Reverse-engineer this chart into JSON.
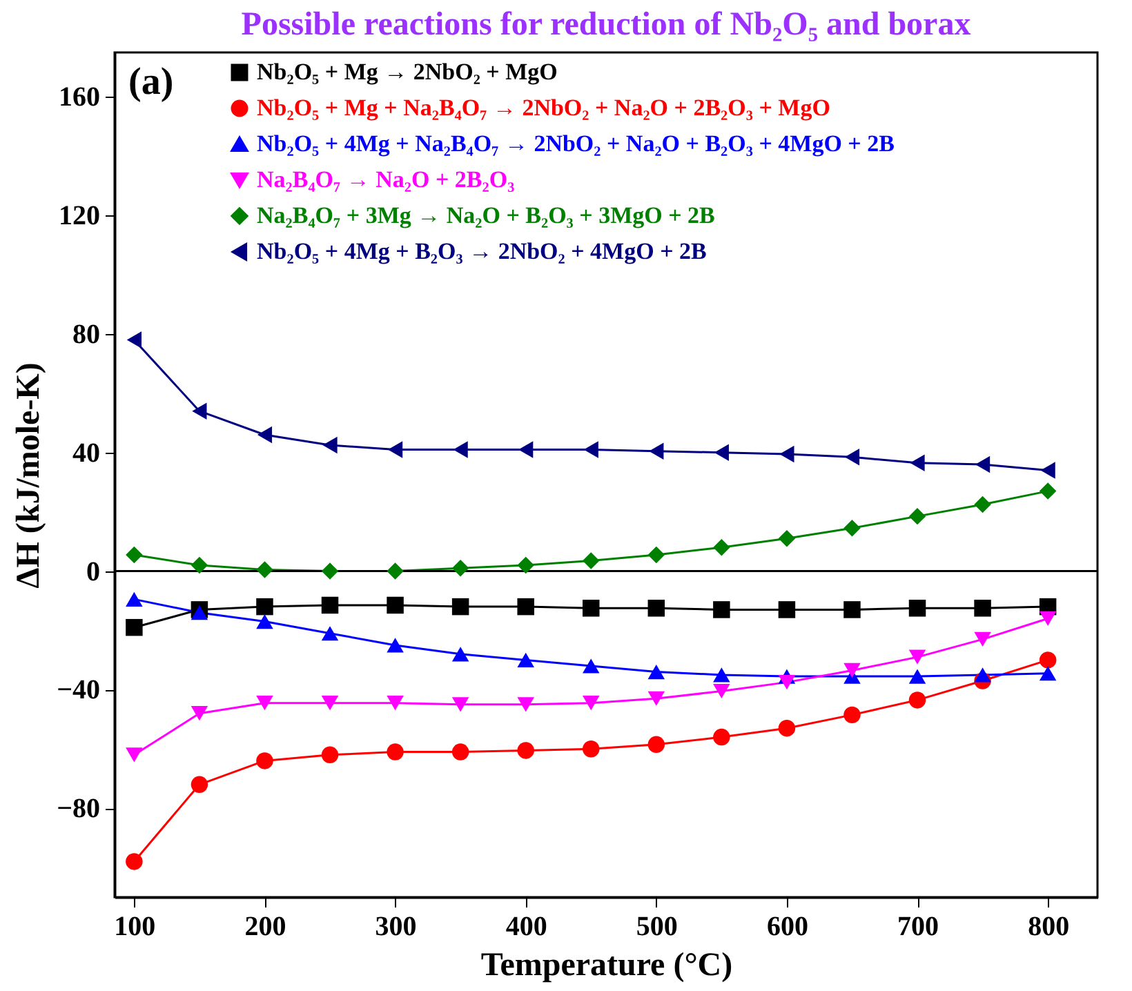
{
  "chart_data": {
    "type": "line",
    "title": "Possible reactions for reduction of Nb₂O₅ and borax",
    "xlabel": "Temperature (°C)",
    "ylabel": "ΔH (kJ/mole-K)",
    "x": [
      100,
      150,
      200,
      250,
      300,
      350,
      400,
      450,
      500,
      550,
      600,
      650,
      700,
      750,
      800
    ],
    "series": [
      {
        "name": "Nb₂O₅ + Mg → 2NbO₂ + MgO",
        "color": "#000000",
        "marker": "square",
        "values": [
          -19,
          -13,
          -12,
          -11.5,
          -11.5,
          -12,
          -12,
          -12.5,
          -12.5,
          -13,
          -13,
          -13,
          -12.5,
          -12.5,
          -12
        ]
      },
      {
        "name": "Nb₂O₅ + Mg + Na₂B₄O₇ → 2NbO₂ + Na₂O + 2B₂O₃ + MgO",
        "color": "#ff0000",
        "marker": "circle",
        "values": [
          -98,
          -72,
          -64,
          -62,
          -61,
          -61,
          -60.5,
          -60,
          -58.5,
          -56,
          -53,
          -48.5,
          -43.5,
          -37,
          -30
        ]
      },
      {
        "name": "Nb₂O₅ + 4Mg + Na₂B₄O₇ → 2NbO₂ + Na₂O + B₂O₃ + 4MgO + 2B",
        "color": "#0000ff",
        "marker": "triangle-up",
        "values": [
          -9.5,
          -14,
          -17,
          -21,
          -25,
          -28,
          -30,
          -32,
          -34,
          -35,
          -35.5,
          -35.5,
          -35.5,
          -35,
          -34.5
        ]
      },
      {
        "name": "Na₂B₄O₇ → Na₂O + 2B₂O₃",
        "color": "#ff00ff",
        "marker": "triangle-down",
        "values": [
          -62,
          -48,
          -44.5,
          -44.5,
          -44.5,
          -45,
          -45,
          -44.5,
          -43,
          -40.5,
          -37.5,
          -33.5,
          -29,
          -23,
          -16
        ]
      },
      {
        "name": "Na₂B₄O₇ + 3Mg → Na₂O + B₂O₃ + 3MgO + 2B",
        "color": "#008000",
        "marker": "diamond",
        "values": [
          5.5,
          2,
          0.5,
          0,
          0,
          1,
          2,
          3.5,
          5.5,
          8,
          11,
          14.5,
          18.5,
          22.5,
          27
        ]
      },
      {
        "name": "Nb₂O₅ + 4Mg + B₂O₃ → 2NbO₂ + 4MgO + 2B",
        "color": "#000080",
        "marker": "triangle-left",
        "values": [
          78,
          54,
          46,
          42.5,
          41,
          41,
          41,
          41,
          40.5,
          40,
          39.5,
          38.5,
          36.5,
          36,
          34
        ]
      }
    ],
    "xlim": [
      85,
      838
    ],
    "ylim": [
      -110,
      175
    ],
    "xticks": [
      100,
      200,
      300,
      400,
      500,
      600,
      700,
      800
    ],
    "yticks": [
      -80,
      -40,
      0,
      40,
      80,
      120,
      160
    ],
    "ref_lines": [
      {
        "axis": "y",
        "value": 0,
        "color": "#000000"
      }
    ],
    "annotations": [
      "(a)"
    ],
    "legend": "top left",
    "grid": false
  }
}
